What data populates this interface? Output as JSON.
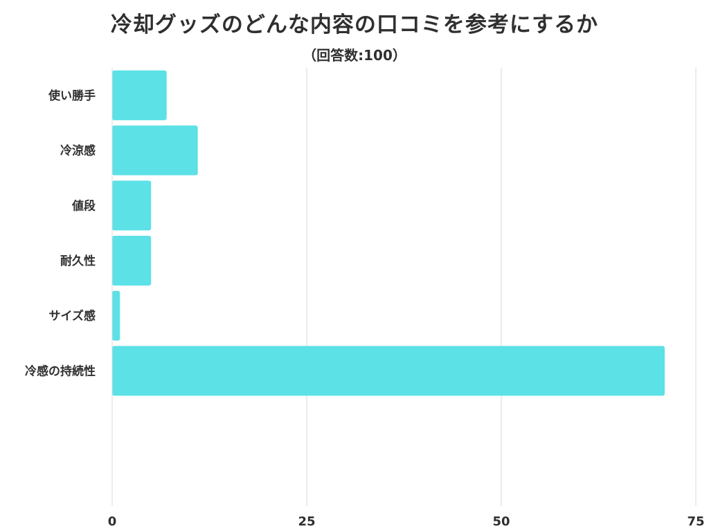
{
  "chart_data": {
    "type": "bar",
    "orientation": "horizontal",
    "title": "冷却グッズのどんな内容の口コミを参考にするか",
    "subtitle": "（回答数:100）",
    "categories": [
      "使い勝手",
      "冷涼感",
      "値段",
      "耐久性",
      "サイズ感",
      "冷感の持続性"
    ],
    "values": [
      7,
      11,
      5,
      5,
      1,
      71
    ],
    "xlim": [
      0,
      75
    ],
    "xticks": [
      "0",
      "25",
      "50",
      "75"
    ],
    "xlabel": "",
    "ylabel": "",
    "grid": true,
    "legend": "none",
    "bar_color": "#5ce1e6",
    "grid_color": "#d9d9d9",
    "text_color": "#2f2f2f"
  }
}
